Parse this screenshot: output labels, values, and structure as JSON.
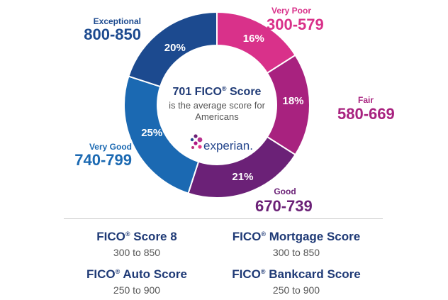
{
  "chart_data": {
    "type": "pie",
    "style": "donut",
    "center": {
      "headline_number": "701",
      "headline_brand": "FICO",
      "headline_mark": "®",
      "headline_word": "Score",
      "subtitle_line1": "is the average score for",
      "subtitle_line2": "Americans",
      "logo_text": "experian."
    },
    "slices": [
      {
        "label": "Very Poor",
        "range": "300-579",
        "value": 16,
        "value_label": "16%",
        "color": "#d9318a"
      },
      {
        "label": "Fair",
        "range": "580-669",
        "value": 18,
        "value_label": "18%",
        "color": "#a8227f"
      },
      {
        "label": "Good",
        "range": "670-739",
        "value": 21,
        "value_label": "21%",
        "color": "#6b2177"
      },
      {
        "label": "Very Good",
        "range": "740-799",
        "value": 25,
        "value_label": "25%",
        "color": "#1b69b2"
      },
      {
        "label": "Exceptional",
        "range": "800-850",
        "value": 20,
        "value_label": "20%",
        "color": "#1c4a8f"
      }
    ]
  },
  "score_models": [
    {
      "brand": "FICO",
      "mark": "®",
      "name": "Score 8",
      "range": "300 to 850"
    },
    {
      "brand": "FICO",
      "mark": "®",
      "name": "Mortgage Score",
      "range": "300 to 850"
    },
    {
      "brand": "FICO",
      "mark": "®",
      "name": "Auto Score",
      "range": "250 to 900"
    },
    {
      "brand": "FICO",
      "mark": "®",
      "name": "Bankcard Score",
      "range": "250 to 900"
    }
  ]
}
